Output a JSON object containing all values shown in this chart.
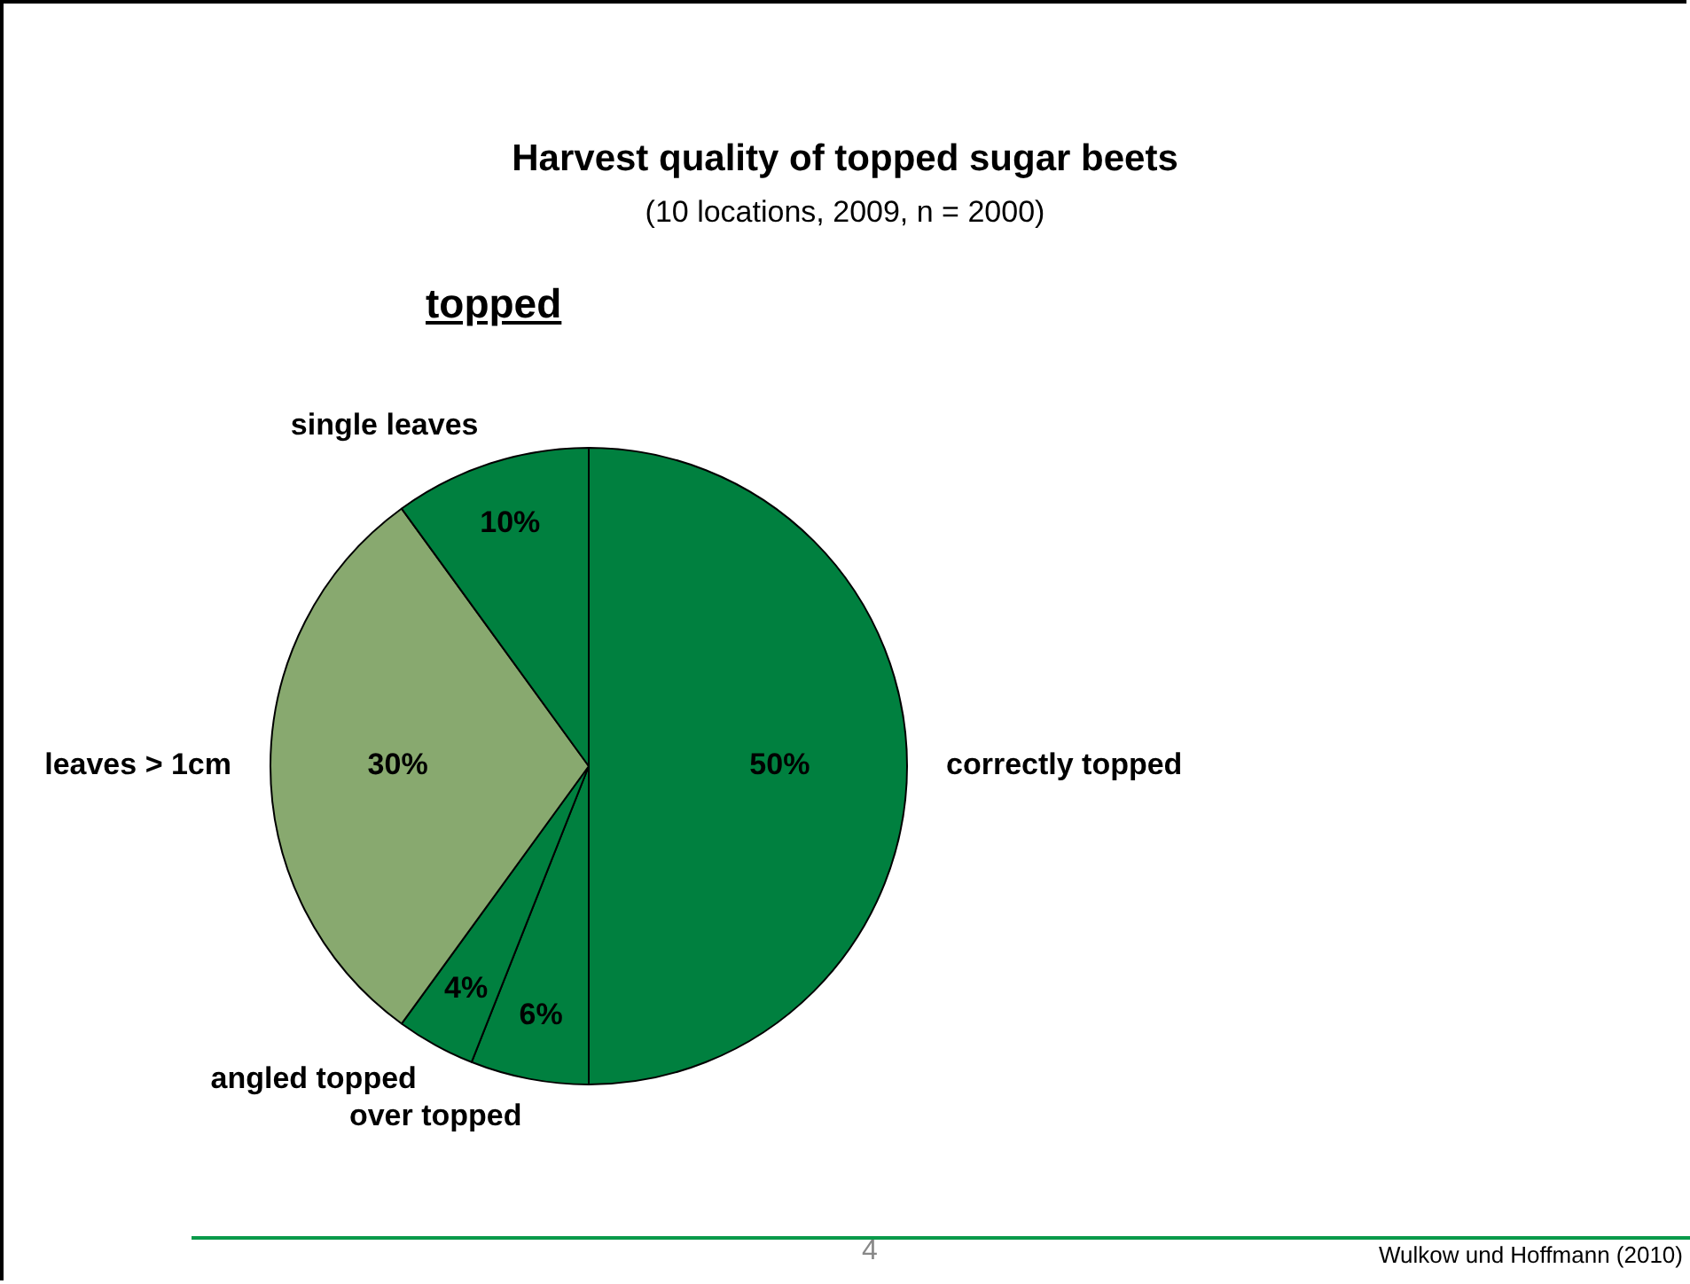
{
  "chart_data": {
    "type": "pie",
    "title": "Harvest quality of topped sugar beets",
    "subtitle": "(10 locations, 2009, n = 2000)",
    "categories": [
      "correctly topped",
      "over topped",
      "angled topped",
      "leaves > 1cm",
      "single leaves"
    ],
    "values": [
      50,
      6,
      4,
      30,
      10
    ],
    "colors": [
      "#00803f",
      "#00803f",
      "#00803f",
      "#88a96f",
      "#00803f"
    ],
    "value_labels": [
      "50%",
      "6%",
      "4%",
      "30%",
      "10%"
    ],
    "legend": false,
    "annotations": [
      "topped",
      "4",
      "Wulkow und Hoffmann (2010)"
    ]
  }
}
